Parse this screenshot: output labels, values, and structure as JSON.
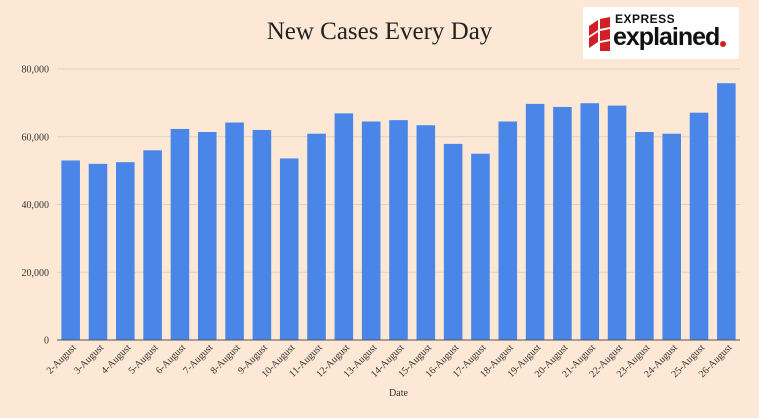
{
  "chart_data": {
    "type": "bar",
    "title": "New Cases Every Day",
    "xlabel": "Date",
    "ylabel": "",
    "ylim": [
      0,
      80000
    ],
    "yticks": [
      0,
      20000,
      40000,
      60000,
      80000
    ],
    "ytick_labels": [
      "0",
      "20,000",
      "40,000",
      "60,000",
      "80,000"
    ],
    "grid": "horizontal",
    "legend": "none",
    "bar_color": "#4a86e8",
    "categories": [
      "2-August",
      "3-August",
      "4-August",
      "5-August",
      "6-August",
      "7-August",
      "8-August",
      "9-August",
      "10-August",
      "11-August",
      "12-August",
      "13-August",
      "14-August",
      "15-August",
      "16-August",
      "17-August",
      "18-August",
      "19-August",
      "20-August",
      "21-August",
      "22-August",
      "23-August",
      "24-August",
      "25-August",
      "26-August"
    ],
    "values": [
      53000,
      52000,
      52500,
      56000,
      62300,
      61400,
      64200,
      62000,
      53600,
      60900,
      66900,
      64500,
      64900,
      63400,
      57900,
      55000,
      64500,
      69700,
      68800,
      69900,
      69200,
      61400,
      60900,
      67100,
      75800
    ]
  },
  "logo": {
    "top_text": "EXPRESS",
    "main_text": "explained",
    "accent_color": "#d21f26"
  },
  "colors": {
    "background": "#fce8d5",
    "grid": "#e2d1c2",
    "axis": "#555555"
  }
}
